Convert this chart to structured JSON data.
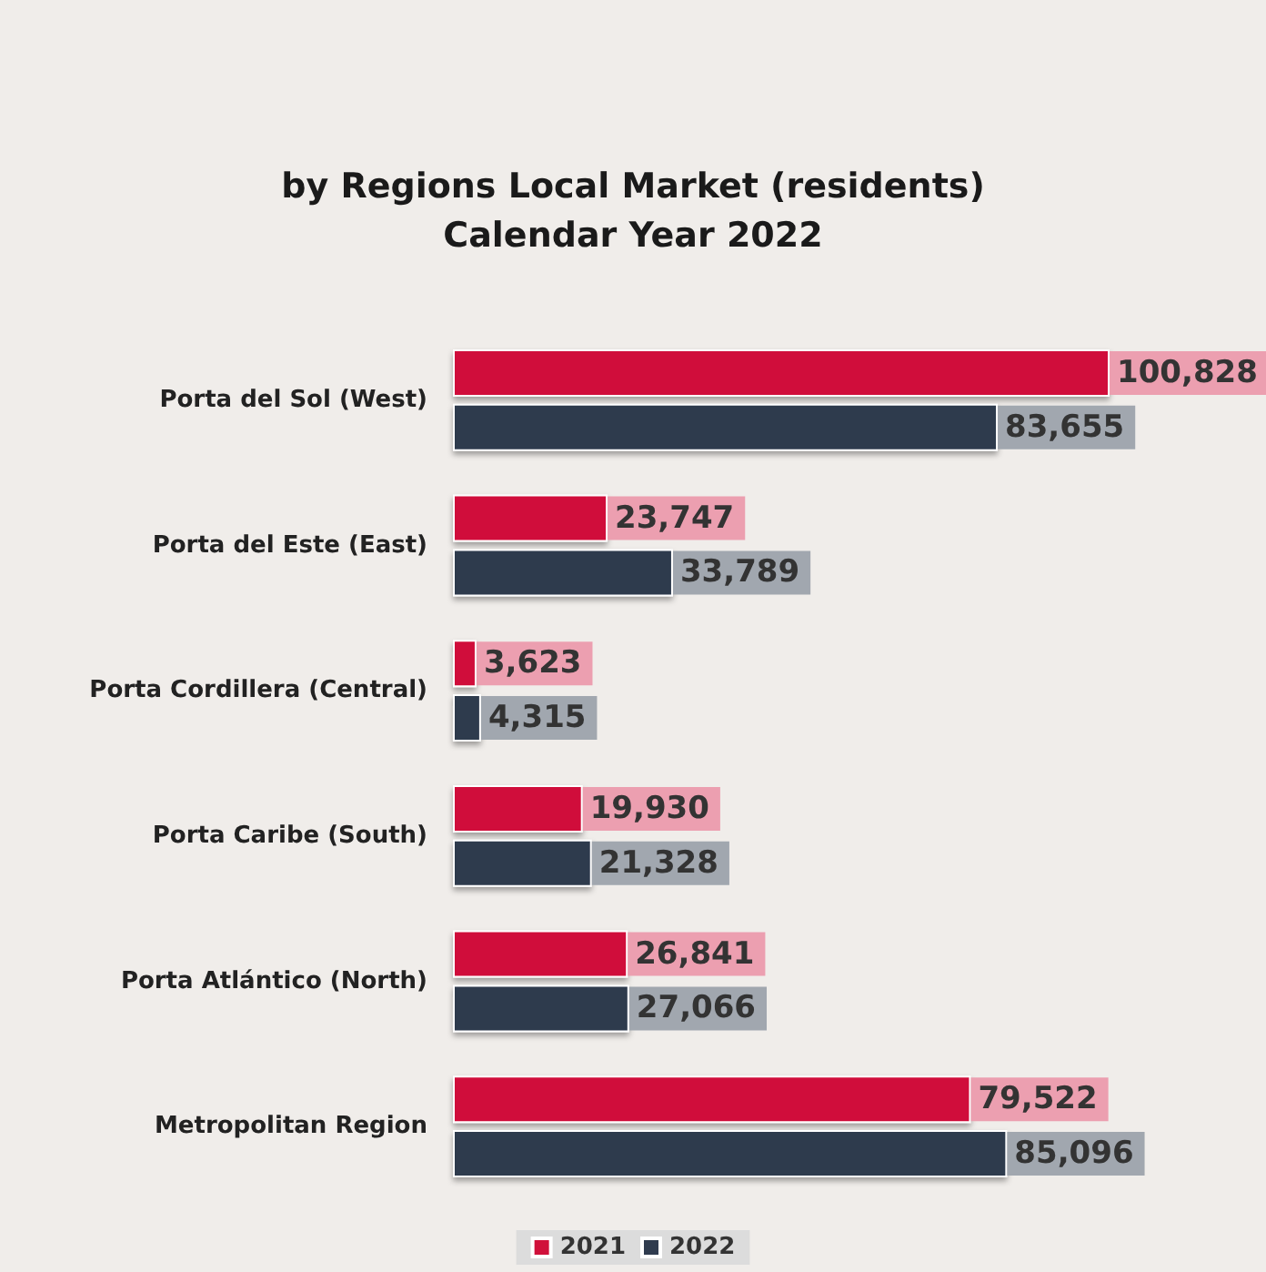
{
  "chart_data": {
    "type": "bar",
    "orientation": "horizontal",
    "title": "by Regions Local Market (residents)",
    "subtitle": "Calendar Year 2022",
    "categories": [
      "Porta del Sol (West)",
      "Porta del Este (East)",
      "Porta Cordillera (Central)",
      "Porta Caribe (South)",
      "Porta Atlántico (North)",
      "Metropolitan Region"
    ],
    "series": [
      {
        "name": "2021",
        "color": "#d0103a",
        "values": [
          100828,
          23747,
          3623,
          19930,
          26841,
          79522
        ],
        "value_labels": [
          "100,828",
          "23,747",
          "3,623",
          "19,930",
          "26,841",
          "79,522"
        ]
      },
      {
        "name": "2022",
        "color": "#2f3b4e",
        "values": [
          83655,
          33789,
          4315,
          21328,
          27066,
          85096
        ],
        "value_labels": [
          "83,655",
          "33,789",
          "4,315",
          "21,328",
          "27,066",
          "85,096"
        ]
      }
    ],
    "legend": "bottom"
  }
}
